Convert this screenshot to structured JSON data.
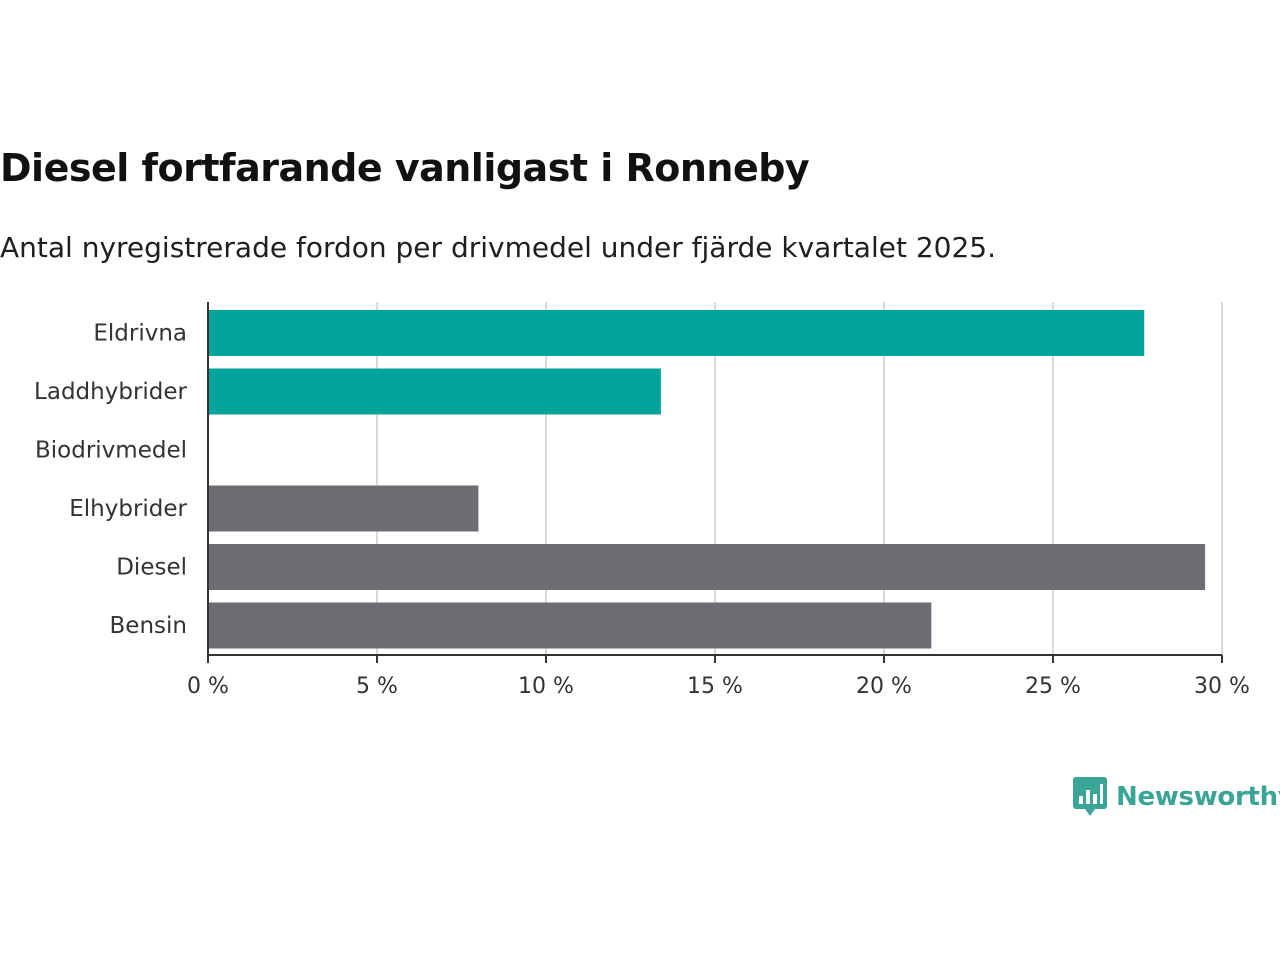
{
  "colors": {
    "accent": "#00a49a",
    "muted": "#6e6d73",
    "grid": "#d9d9d9",
    "axis": "#333333",
    "logo": "#3aa597"
  },
  "brand": {
    "name": "Newsworthy"
  },
  "chart_data": {
    "type": "bar",
    "orientation": "horizontal",
    "title": "Diesel fortfarande vanligast i Ronneby",
    "subtitle": "Antal nyregistrerade fordon per drivmedel under fjärde kvartalet 2025.",
    "categories": [
      "Eldrivna",
      "Laddhybrider",
      "Biodrivmedel",
      "Elhybrider",
      "Diesel",
      "Bensin"
    ],
    "values": [
      27.7,
      13.4,
      0,
      8.0,
      29.5,
      21.4
    ],
    "highlight": [
      true,
      true,
      true,
      false,
      false,
      false
    ],
    "xlim": [
      0,
      30
    ],
    "xticks": [
      0,
      5,
      10,
      15,
      20,
      25,
      30
    ],
    "xtick_labels": [
      "0 %",
      "5 %",
      "10 %",
      "15 %",
      "20 %",
      "25 %",
      "30 %"
    ],
    "xlabel": "",
    "ylabel": "",
    "grid": true,
    "legend": "none"
  }
}
